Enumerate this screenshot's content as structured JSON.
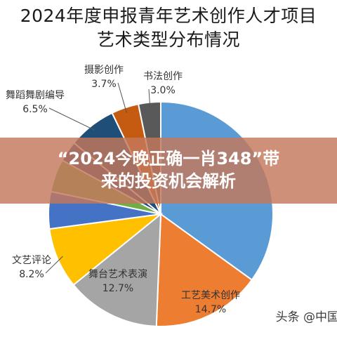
{
  "chart_data": {
    "type": "pie",
    "title": "2024年度申报青年艺术创作人才项目艺术类型分布情况",
    "title_lines": [
      "2024年度申报青年艺术创作人才项目",
      "艺术类型分布情况"
    ],
    "slices": [
      {
        "label": "",
        "value": null,
        "value_label": "",
        "color": "#5b9bd5"
      },
      {
        "label": "工艺美术创作",
        "value": 14.7,
        "value_label": "14.7%",
        "color": "#ed7d31"
      },
      {
        "label": "舞台艺术表演",
        "value": 12.7,
        "value_label": "12.7%",
        "color": "#a5a5a5"
      },
      {
        "label": "文艺评论",
        "value": 8.2,
        "value_label": "8.2%",
        "color": "#ffc000"
      },
      {
        "label": "",
        "value": null,
        "value_label": "",
        "color": "#4472c4"
      },
      {
        "label": "",
        "value": null,
        "value_label": "",
        "color": "#70ad47"
      },
      {
        "label": "",
        "value": null,
        "value_label": "",
        "color": "#264478"
      },
      {
        "label": "舞蹈舞剧编导",
        "value": 6.5,
        "value_label": "6.5%",
        "color": "#1f4e79"
      },
      {
        "label": "摄影创作",
        "value": 3.7,
        "value_label": "3.7%",
        "color": "#c55a11"
      },
      {
        "label": "书法创作",
        "value": 3.0,
        "value_label": "3.0%",
        "color": "#595959"
      }
    ]
  },
  "banner": {
    "line1": "“2024今晚正确一肖348”带",
    "line2": "来的投资机会解析"
  },
  "watermark": "头条 @中国艺"
}
